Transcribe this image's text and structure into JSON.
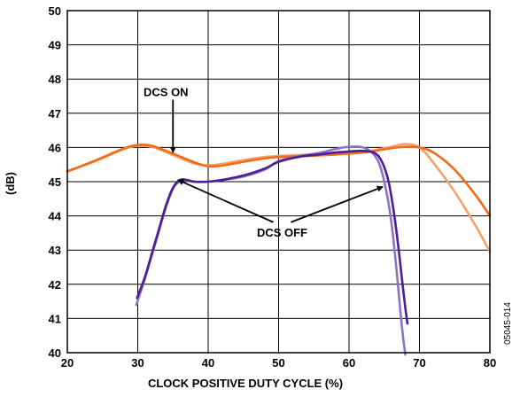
{
  "chart_data": {
    "type": "line",
    "title": "",
    "xlabel": "CLOCK POSITIVE DUTY CYCLE (%)",
    "ylabel": "(dB)",
    "xlim": [
      20,
      80
    ],
    "ylim": [
      40,
      50
    ],
    "xticks": [
      20,
      30,
      40,
      50,
      60,
      70,
      80
    ],
    "yticks": [
      40,
      41,
      42,
      43,
      44,
      45,
      46,
      47,
      48,
      49,
      50
    ],
    "grid": true,
    "figure_id": "05045-014",
    "annotations": [
      {
        "text": "DCS ON",
        "x": 34,
        "y": 47.5,
        "arrows_to": [
          [
            35,
            45.85
          ]
        ]
      },
      {
        "text": "DCS OFF",
        "x": 50.5,
        "y": 43.4,
        "arrows_to": [
          [
            35.7,
            45.05
          ],
          [
            64.8,
            44.85
          ]
        ]
      }
    ],
    "colors": {
      "dcs_on_dark": "#f26a1b",
      "dcs_on_light": "#f7a06a",
      "dcs_off_dark": "#4b1f91",
      "dcs_off_light": "#8c72c8"
    },
    "series": [
      {
        "group": "DCS ON",
        "color": "#f7a06a",
        "x": [
          20,
          24,
          28,
          30,
          32,
          35,
          38,
          40,
          42,
          45,
          48,
          50,
          55,
          60,
          63,
          66,
          68,
          70,
          72,
          75,
          78,
          80
        ],
        "y": [
          45.3,
          45.6,
          45.95,
          46.05,
          46.02,
          45.78,
          45.53,
          45.48,
          45.52,
          45.63,
          45.72,
          45.75,
          45.8,
          45.85,
          45.9,
          46.02,
          46.1,
          46.0,
          45.55,
          44.7,
          43.7,
          42.95
        ]
      },
      {
        "group": "DCS ON",
        "color": "#f26a1b",
        "x": [
          20,
          24,
          28,
          30,
          32,
          35,
          38,
          40,
          42,
          45,
          48,
          50,
          55,
          60,
          63,
          66,
          68,
          70,
          72,
          75,
          78,
          80
        ],
        "y": [
          45.3,
          45.62,
          45.97,
          46.07,
          46.05,
          45.82,
          45.57,
          45.45,
          45.47,
          45.58,
          45.68,
          45.72,
          45.76,
          45.82,
          45.88,
          45.98,
          46.02,
          46.0,
          45.85,
          45.35,
          44.6,
          44.0
        ]
      },
      {
        "group": "DCS OFF",
        "color": "#8c72c8",
        "x": [
          29.8,
          31,
          32,
          33,
          34,
          35,
          36,
          37,
          38,
          40,
          42,
          45,
          48,
          50,
          53,
          56,
          58,
          60,
          62,
          63.5,
          64.5,
          65.5,
          66.2,
          66.8,
          67.3,
          67.7,
          68.0
        ],
        "y": [
          41.4,
          42.15,
          42.85,
          43.55,
          44.25,
          44.8,
          45.02,
          45.03,
          45.0,
          45.0,
          45.05,
          45.15,
          45.35,
          45.6,
          45.75,
          45.85,
          45.95,
          46.02,
          46.0,
          45.8,
          45.4,
          44.5,
          43.5,
          42.3,
          41.2,
          40.4,
          39.95
        ]
      },
      {
        "group": "DCS OFF",
        "color": "#4b1f91",
        "x": [
          29.9,
          31,
          32,
          33,
          34,
          35,
          36,
          37,
          38,
          40,
          42,
          45,
          48,
          50,
          53,
          56,
          58,
          60,
          62,
          63.5,
          64.5,
          65.5,
          66.3,
          67.0,
          67.6,
          68.0,
          68.3
        ],
        "y": [
          41.6,
          42.2,
          42.9,
          43.6,
          44.3,
          44.82,
          45.05,
          45.05,
          45.0,
          45.0,
          45.05,
          45.18,
          45.38,
          45.58,
          45.73,
          45.8,
          45.85,
          45.88,
          45.9,
          45.85,
          45.65,
          45.1,
          44.2,
          43.1,
          42.0,
          41.3,
          40.85
        ]
      }
    ]
  }
}
